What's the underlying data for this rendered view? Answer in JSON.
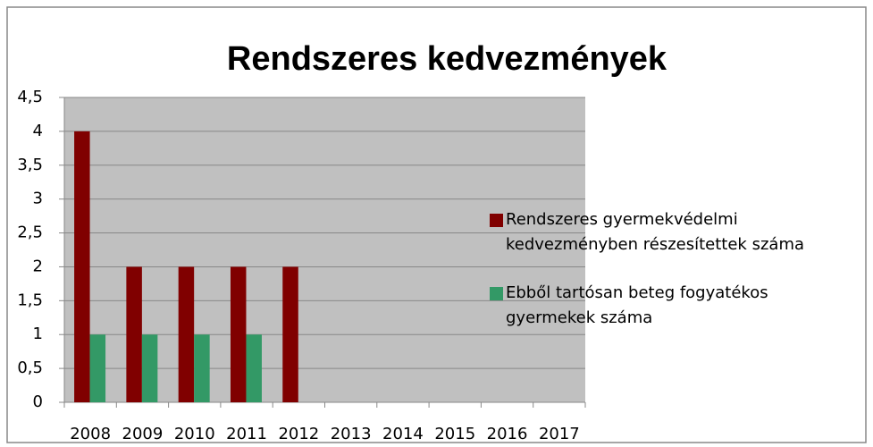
{
  "chart_data": {
    "type": "bar",
    "title": "Rendszeres kedvezmények",
    "categories": [
      "2008",
      "2009",
      "2010",
      "2011",
      "2012",
      "2013",
      "2014",
      "2015",
      "2016",
      "2017"
    ],
    "series": [
      {
        "name": "Rendszeres gyermekvédelmi kedvezményben részesítettek száma",
        "color": "#800000",
        "values": [
          4,
          2,
          2,
          2,
          2,
          null,
          null,
          null,
          null,
          null
        ]
      },
      {
        "name": "Ebből tartósan beteg fogyatékos gyermekek száma",
        "color": "#339966",
        "values": [
          1,
          1,
          1,
          1,
          null,
          null,
          null,
          null,
          null,
          null
        ]
      }
    ],
    "ylim": [
      0,
      4.5
    ],
    "yticks": [
      0,
      {
        "value": 0.5,
        "label": "0,5"
      },
      1,
      {
        "value": 1.5,
        "label": "1,5"
      },
      2,
      {
        "value": 2.5,
        "label": "2,5"
      },
      3,
      {
        "value": 3.5,
        "label": "3,5"
      },
      4,
      {
        "value": 4.5,
        "label": "4,5"
      }
    ],
    "grid": true,
    "legend": "right"
  }
}
